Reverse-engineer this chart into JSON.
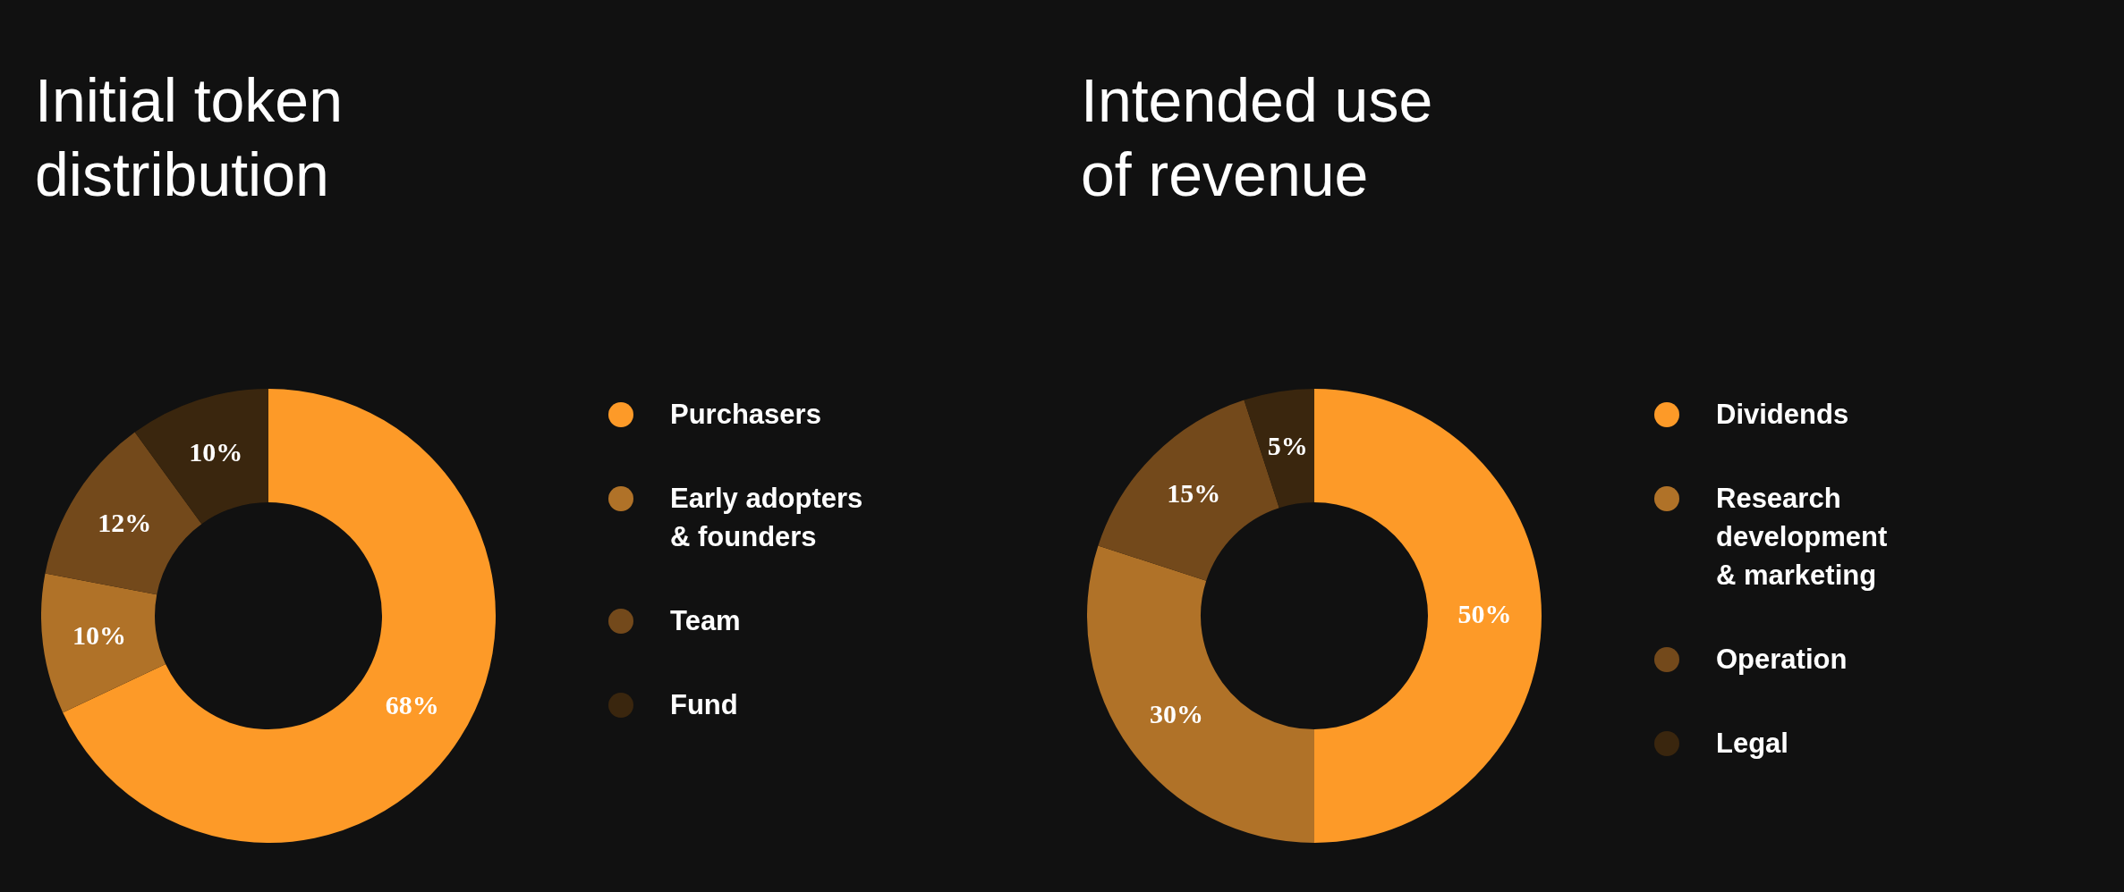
{
  "chart_data": [
    {
      "type": "donut",
      "title": "Initial token distribution",
      "categories": [
        "Purchasers",
        "Early adopters & founders",
        "Team",
        "Fund"
      ],
      "values": [
        68,
        10,
        12,
        10
      ],
      "colors": [
        "#fd9a28",
        "#b07228",
        "#73491b",
        "#3a260e"
      ],
      "value_labels": [
        "68%",
        "10%",
        "12%",
        "10%"
      ],
      "legend": "right"
    },
    {
      "type": "donut",
      "title": "Intended use of revenue",
      "categories": [
        "Dividends",
        "Research development & marketing",
        "Operation",
        "Legal"
      ],
      "values": [
        50,
        30,
        15,
        5
      ],
      "colors": [
        "#fd9a28",
        "#b07228",
        "#73491b",
        "#3a260e"
      ],
      "value_labels": [
        "50%",
        "30%",
        "15%",
        "5%"
      ],
      "legend": "right"
    }
  ]
}
